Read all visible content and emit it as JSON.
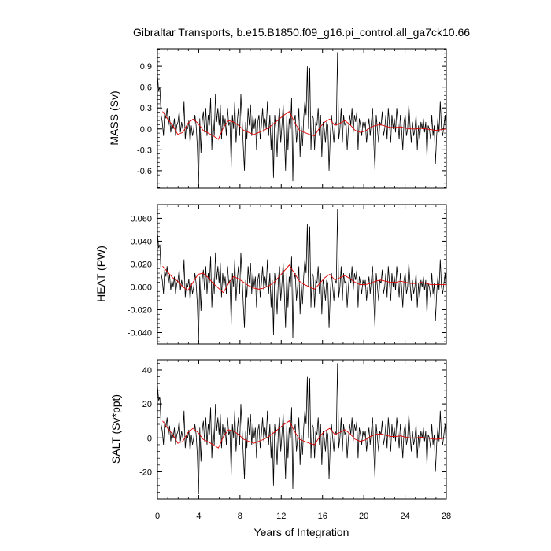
{
  "title": "Gibraltar Transports, b.e15.B1850.f09_g16.pi_control.all_ga7ck10.66",
  "xlabel": "Years of Integration",
  "colors": {
    "raw": "#000000",
    "smooth": "#e00000"
  },
  "chart_data": [
    {
      "type": "line",
      "ylabel": "MASS (Sv)",
      "xlim": [
        0,
        28
      ],
      "ylim": [
        -0.85,
        1.15
      ],
      "xticks": [
        "0",
        "4",
        "8",
        "12",
        "16",
        "20",
        "24",
        "28"
      ],
      "yticks": [
        "-0.6",
        "-0.3",
        "0.0",
        "0.3",
        "0.6",
        "0.9"
      ],
      "ytick_values": [
        -0.6,
        -0.3,
        0.0,
        0.3,
        0.6,
        0.9
      ],
      "series": [
        {
          "values": [
            0.78,
            0.55,
            0.6,
            0.2,
            0.1,
            -0.1,
            0.25,
            0.15,
            0.3,
            0.05,
            0.18,
            -0.05,
            0.1,
            0.0,
            0.15,
            -0.1,
            0.05,
            0.1,
            0.25,
            -0.05,
            0.1,
            0.0,
            0.4,
            -0.15,
            0.05,
            0.0,
            0.12,
            -0.2,
            0.05,
            -0.1,
            0.0,
            0.2,
            0.05,
            -0.25,
            -0.82,
            0.15,
            -0.35,
            0.1,
            0.25,
            -0.05,
            0.3,
            -0.1,
            0.2,
            0.05,
            0.45,
            -0.3,
            0.15,
            -0.1,
            0.5,
            0.1,
            0.3,
            0.05,
            0.35,
            -0.15,
            0.2,
            0.0,
            0.15,
            -0.1,
            0.3,
            0.05,
            0.1,
            -0.55,
            0.2,
            0.0,
            0.4,
            -0.2,
            0.1,
            0.3,
            -0.1,
            0.5,
            0.15,
            -0.25,
            -0.6,
            0.1,
            -0.15,
            0.3,
            0.05,
            0.35,
            -0.1,
            0.2,
            0.0,
            0.15,
            -0.3,
            0.1,
            0.2,
            -0.15,
            0.05,
            0.3,
            -0.05,
            0.15,
            0.0,
            0.4,
            -0.1,
            0.2,
            -0.3,
            0.1,
            -0.7,
            0.2,
            0.0,
            -0.4,
            0.1,
            0.3,
            -0.2,
            0.05,
            0.35,
            -0.1,
            -0.6,
            0.2,
            -0.3,
            0.15,
            0.0,
            0.45,
            -0.75,
            0.1,
            0.2,
            -0.2,
            0.0,
            0.3,
            -0.4,
            0.05,
            -0.25,
            0.15,
            0.4,
            0.2,
            0.9,
            0.0,
            0.88,
            -0.3,
            0.2,
            0.15,
            -0.3,
            0.1,
            0.05,
            0.3,
            -0.1,
            0.2,
            -0.4,
            0.1,
            0.0,
            -0.2,
            0.1,
            0.05,
            -0.6,
            -0.1,
            0.2,
            0.0,
            -0.2,
            0.1,
            0.05,
            1.1,
            -0.15,
            0.0,
            0.3,
            -0.2,
            0.2,
            0.05,
            0.1,
            -0.3,
            0.0,
            0.2,
            0.05,
            0.3,
            -0.05,
            0.2,
            0.1,
            0.25,
            -0.3,
            0.15,
            0.05,
            -0.1,
            0.1,
            0.0,
            0.1,
            -0.2,
            0.0,
            0.15,
            -0.1,
            0.1,
            0.3,
            -0.2,
            -0.6,
            0.2,
            0.0,
            -0.2,
            0.1,
            0.05,
            0.25,
            -0.1,
            0.0,
            0.2,
            -0.15,
            0.3,
            0.05,
            -0.2,
            0.2,
            0.0,
            0.15,
            -0.05,
            0.3,
            0.1,
            -0.15,
            0.2,
            0.0,
            -0.3,
            0.1,
            0.2,
            -0.1,
            0.0,
            0.35,
            0.05,
            -0.2,
            0.1,
            -0.1,
            0.0,
            0.2,
            -0.3,
            0.05,
            -0.15,
            0.1,
            0.0,
            0.15,
            -0.05,
            0.1,
            -0.4,
            0.05,
            0.0,
            -0.15,
            0.2,
            -0.1,
            0.05,
            -0.5,
            -0.1,
            0.15,
            -0.05,
            0.4,
            0.0,
            -0.1,
            0.05,
            0.2,
            -0.15
          ]
        },
        {
          "values": [
            0.25,
            0.14,
            0.05,
            -0.08,
            -0.05,
            0.08,
            0.14,
            0.08,
            -0.02,
            -0.06,
            -0.1,
            -0.15,
            0.02,
            0.12,
            0.1,
            0.05,
            -0.02,
            -0.05,
            -0.08,
            -0.05,
            -0.02,
            0.02,
            0.08,
            0.14,
            0.2,
            0.25,
            0.1,
            -0.02,
            -0.05,
            -0.08,
            -0.1,
            0.02,
            0.1,
            0.14,
            0.05,
            0.08,
            0.12,
            0.06,
            -0.02,
            -0.05,
            -0.03,
            0.02,
            0.05,
            0.06,
            0.04,
            0.02,
            0.02,
            0.03,
            0.01,
            0.0,
            0.0,
            0.01,
            0.0,
            -0.01,
            -0.02,
            -0.01,
            0.0
          ]
        }
      ]
    },
    {
      "type": "line",
      "ylabel": "HEAT (PW)",
      "xlim": [
        0,
        28
      ],
      "ylim": [
        -0.05,
        0.072
      ],
      "xticks": [
        "0",
        "4",
        "8",
        "12",
        "16",
        "20",
        "24",
        "28"
      ],
      "yticks": [
        "-0.040",
        "-0.020",
        "0.000",
        "0.020",
        "0.040",
        "0.060"
      ],
      "ytick_values": [
        -0.04,
        -0.02,
        0.0,
        0.02,
        0.04,
        0.06
      ],
      "series": [
        {
          "values": [
            0.048,
            0.034,
            0.037,
            0.012,
            0.006,
            -0.006,
            0.015,
            0.009,
            0.018,
            0.003,
            0.011,
            -0.003,
            0.006,
            0.0,
            0.009,
            -0.006,
            0.003,
            0.006,
            0.015,
            -0.003,
            0.006,
            0.0,
            0.024,
            -0.009,
            0.003,
            0.0,
            0.007,
            -0.012,
            0.003,
            -0.006,
            0.0,
            0.012,
            0.003,
            -0.015,
            -0.048,
            0.009,
            -0.021,
            0.006,
            0.015,
            -0.003,
            0.018,
            -0.006,
            0.012,
            0.003,
            0.027,
            -0.018,
            0.009,
            -0.006,
            0.03,
            0.006,
            0.018,
            0.003,
            0.021,
            -0.009,
            0.012,
            0.0,
            0.009,
            -0.006,
            0.018,
            0.003,
            0.006,
            -0.033,
            0.012,
            0.0,
            0.024,
            -0.012,
            0.006,
            0.018,
            -0.006,
            0.03,
            0.009,
            -0.015,
            -0.036,
            0.006,
            -0.009,
            0.018,
            0.003,
            0.021,
            -0.006,
            0.012,
            0.0,
            0.009,
            -0.018,
            0.006,
            0.012,
            -0.009,
            0.003,
            0.018,
            -0.003,
            0.009,
            0.0,
            0.024,
            -0.006,
            0.012,
            -0.018,
            0.006,
            -0.042,
            0.012,
            0.0,
            -0.024,
            0.006,
            0.018,
            -0.012,
            0.003,
            0.021,
            -0.006,
            -0.036,
            0.012,
            -0.018,
            0.009,
            0.0,
            0.027,
            -0.045,
            0.006,
            0.012,
            -0.012,
            0.0,
            0.018,
            -0.024,
            0.003,
            -0.015,
            0.009,
            0.024,
            0.012,
            0.055,
            0.0,
            0.053,
            -0.018,
            0.012,
            0.009,
            -0.018,
            0.006,
            0.003,
            0.018,
            -0.006,
            0.012,
            -0.024,
            0.006,
            0.0,
            -0.012,
            0.006,
            0.003,
            -0.036,
            -0.006,
            0.012,
            0.0,
            -0.012,
            0.006,
            0.003,
            0.068,
            -0.009,
            0.0,
            0.018,
            -0.012,
            0.012,
            0.003,
            0.006,
            -0.018,
            0.0,
            0.012,
            0.003,
            0.018,
            -0.003,
            0.012,
            0.006,
            0.015,
            -0.018,
            0.009,
            0.003,
            -0.006,
            0.006,
            0.0,
            0.006,
            -0.012,
            0.0,
            0.009,
            -0.006,
            0.006,
            0.018,
            -0.012,
            -0.036,
            0.012,
            0.0,
            -0.012,
            0.006,
            0.003,
            0.015,
            -0.006,
            0.0,
            0.012,
            -0.009,
            0.018,
            0.003,
            -0.012,
            0.012,
            0.0,
            0.009,
            -0.003,
            0.018,
            0.006,
            -0.009,
            0.012,
            0.0,
            -0.018,
            0.006,
            0.012,
            -0.006,
            0.0,
            0.021,
            0.003,
            -0.012,
            0.006,
            -0.006,
            0.0,
            0.012,
            -0.018,
            0.003,
            -0.009,
            0.006,
            0.0,
            0.009,
            -0.003,
            0.006,
            -0.024,
            0.003,
            0.0,
            -0.009,
            0.012,
            -0.006,
            0.003,
            -0.03,
            -0.006,
            0.009,
            -0.003,
            0.024,
            0.0,
            -0.006,
            0.003,
            0.012,
            -0.009
          ]
        },
        {
          "values": [
            0.018,
            0.013,
            0.008,
            0.005,
            0.0,
            -0.003,
            0.004,
            0.011,
            0.012,
            0.008,
            0.003,
            -0.001,
            -0.005,
            0.003,
            0.009,
            0.007,
            0.004,
            0.001,
            -0.001,
            -0.002,
            -0.001,
            0.001,
            0.004,
            0.009,
            0.014,
            0.019,
            0.012,
            0.005,
            0.002,
            0.0,
            -0.002,
            0.003,
            0.008,
            0.011,
            0.006,
            0.008,
            0.01,
            0.007,
            0.004,
            0.002,
            0.002,
            0.003,
            0.005,
            0.006,
            0.005,
            0.004,
            0.004,
            0.005,
            0.004,
            0.003,
            0.003,
            0.004,
            0.003,
            0.002,
            0.002,
            0.002,
            0.002
          ]
        }
      ]
    },
    {
      "type": "line",
      "ylabel": "SALT (Sv*ppt)",
      "xlim": [
        0,
        28
      ],
      "ylim": [
        -36,
        46
      ],
      "xticks": [
        "0",
        "4",
        "8",
        "12",
        "16",
        "20",
        "24",
        "28"
      ],
      "yticks": [
        "-20",
        "0",
        "20",
        "40"
      ],
      "ytick_values": [
        -20,
        0,
        20,
        40
      ],
      "series": [
        {
          "values": [
            31.2,
            22.0,
            24.0,
            8.0,
            4.0,
            -4.0,
            10.0,
            6.0,
            12.0,
            2.0,
            7.2,
            -2.0,
            4.0,
            0.0,
            6.0,
            -4.0,
            2.0,
            4.0,
            10.0,
            -2.0,
            4.0,
            0.0,
            16.0,
            -6.0,
            2.0,
            0.0,
            4.8,
            -8.0,
            2.0,
            -4.0,
            0.0,
            8.0,
            2.0,
            -10.0,
            -32.8,
            6.0,
            -14.0,
            4.0,
            10.0,
            -2.0,
            12.0,
            -4.0,
            8.0,
            2.0,
            18.0,
            -12.0,
            6.0,
            -4.0,
            20.0,
            4.0,
            12.0,
            2.0,
            14.0,
            -6.0,
            8.0,
            0.0,
            6.0,
            -4.0,
            12.0,
            2.0,
            4.0,
            -22.0,
            8.0,
            0.0,
            16.0,
            -8.0,
            4.0,
            12.0,
            -4.0,
            20.0,
            6.0,
            -10.0,
            -24.0,
            4.0,
            -6.0,
            12.0,
            2.0,
            14.0,
            -4.0,
            8.0,
            0.0,
            6.0,
            -12.0,
            4.0,
            8.0,
            -6.0,
            2.0,
            12.0,
            -2.0,
            6.0,
            0.0,
            16.0,
            -4.0,
            8.0,
            -12.0,
            4.0,
            -28.0,
            8.0,
            0.0,
            -16.0,
            4.0,
            12.0,
            -8.0,
            2.0,
            14.0,
            -4.0,
            -24.0,
            8.0,
            -12.0,
            6.0,
            0.0,
            18.0,
            -30.0,
            4.0,
            8.0,
            -8.0,
            0.0,
            12.0,
            -16.0,
            2.0,
            -10.0,
            6.0,
            16.0,
            8.0,
            36.0,
            0.0,
            35.2,
            -12.0,
            8.0,
            6.0,
            -12.0,
            4.0,
            2.0,
            12.0,
            -4.0,
            8.0,
            -16.0,
            4.0,
            0.0,
            -8.0,
            4.0,
            2.0,
            -24.0,
            -4.0,
            8.0,
            0.0,
            -8.0,
            4.0,
            2.0,
            44.0,
            -6.0,
            0.0,
            12.0,
            -8.0,
            8.0,
            2.0,
            4.0,
            -12.0,
            0.0,
            8.0,
            2.0,
            12.0,
            -2.0,
            8.0,
            4.0,
            10.0,
            -12.0,
            6.0,
            2.0,
            -4.0,
            4.0,
            0.0,
            4.0,
            -8.0,
            0.0,
            6.0,
            -4.0,
            4.0,
            12.0,
            -8.0,
            -24.0,
            8.0,
            0.0,
            -8.0,
            4.0,
            2.0,
            10.0,
            -4.0,
            0.0,
            8.0,
            -6.0,
            12.0,
            2.0,
            -8.0,
            8.0,
            0.0,
            6.0,
            -2.0,
            12.0,
            4.0,
            -6.0,
            8.0,
            0.0,
            -12.0,
            4.0,
            8.0,
            -4.0,
            0.0,
            14.0,
            2.0,
            -8.0,
            4.0,
            -4.0,
            0.0,
            8.0,
            -12.0,
            2.0,
            -6.0,
            4.0,
            0.0,
            6.0,
            -2.0,
            4.0,
            -16.0,
            2.0,
            0.0,
            -6.0,
            8.0,
            -4.0,
            2.0,
            -20.0,
            -4.0,
            6.0,
            -2.0,
            16.0,
            0.0,
            -4.0,
            2.0,
            8.0,
            -6.0
          ]
        },
        {
          "values": [
            10.0,
            5.6,
            2.0,
            -3.2,
            -2.0,
            3.2,
            5.6,
            3.2,
            -0.8,
            -2.4,
            -4.0,
            -6.0,
            0.8,
            4.8,
            4.0,
            2.0,
            -0.8,
            -2.0,
            -3.2,
            -2.0,
            -0.8,
            0.8,
            3.2,
            5.6,
            8.0,
            10.0,
            4.0,
            -0.8,
            -2.0,
            -3.2,
            -4.0,
            0.8,
            4.0,
            5.6,
            2.0,
            3.2,
            4.8,
            2.4,
            -0.8,
            -2.0,
            -1.2,
            0.8,
            2.0,
            2.4,
            1.6,
            0.8,
            0.8,
            1.2,
            0.4,
            0.0,
            0.0,
            0.4,
            0.0,
            -0.4,
            -0.8,
            -0.4,
            0.0
          ]
        }
      ]
    }
  ]
}
